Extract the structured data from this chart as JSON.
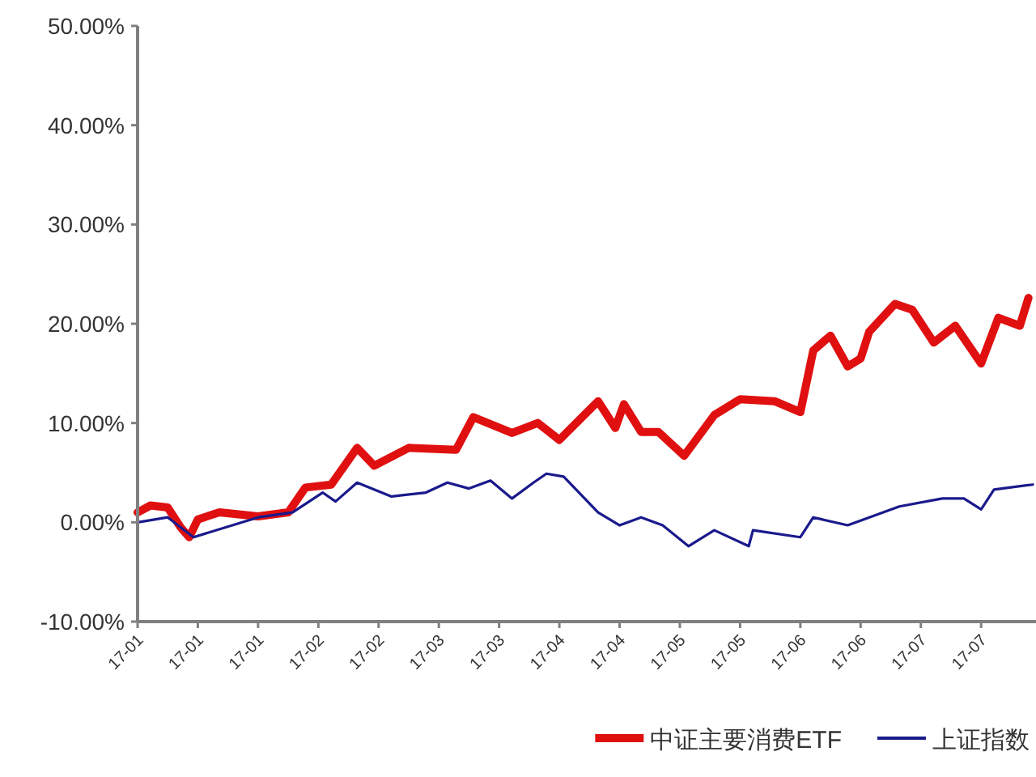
{
  "chart_data": {
    "type": "line",
    "x": [
      "--01-03",
      "--01-06",
      "--01-10",
      "--01-13",
      "--01-15",
      "--01-17",
      "--01-22",
      "--01-31",
      "--02-07",
      "--02-11",
      "--02-17",
      "--02-23",
      "--02-27",
      "--03-07",
      "--03-18",
      "--03-22",
      "--03-31",
      "--04-06",
      "--04-11",
      "--04-20",
      "--04-24",
      "--04-26",
      "--04-30",
      "--05-04",
      "--05-10",
      "--05-17",
      "--05-23",
      "--05-31",
      "--06-06",
      "--06-09",
      "--06-13",
      "--06-17",
      "--06-20",
      "--06-22",
      "--06-28",
      "--07-02",
      "--07-07",
      "--07-12",
      "--07-18",
      "--07-22",
      "--07-27",
      "--07-29"
    ],
    "series": [
      {
        "name": "中证主要消费ETF",
        "color": "#e01010",
        "values": [
          1.0,
          1.7,
          1.5,
          -0.5,
          -1.5,
          0.3,
          1.0,
          0.6,
          1.0,
          3.5,
          3.8,
          7.5,
          5.7,
          7.5,
          7.3,
          10.6,
          9.0,
          10.0,
          8.3,
          12.2,
          9.5,
          11.9,
          9.1,
          9.1,
          6.7,
          10.8,
          12.4,
          12.2,
          11.1,
          17.3,
          18.8,
          15.7,
          16.5,
          19.2,
          22.0,
          21.4,
          18.1,
          19.8,
          16.0,
          20.6,
          19.8,
          22.6
        ]
      },
      {
        "name": "上证指数",
        "color": "#1a1a8c",
        "x": [
          "--01-03",
          "--01-10",
          "--01-16",
          "--01-31",
          "--02-08",
          "--02-15",
          "--02-18",
          "--02-23",
          "--03-03",
          "--03-11",
          "--03-16",
          "--03-21",
          "--03-26",
          "--03-31",
          "--04-05",
          "--04-08",
          "--04-12",
          "--04-20",
          "--04-25",
          "--04-30",
          "--05-05",
          "--05-11",
          "--05-17",
          "--05-25",
          "--05-26",
          "--06-06",
          "--06-09",
          "--06-17",
          "--06-29",
          "--07-09",
          "--07-14",
          "--07-18",
          "--07-21",
          "--07-30"
        ],
        "values": [
          0,
          0.5,
          -1.5,
          0.5,
          1,
          3,
          2.1,
          4,
          2.6,
          3,
          4,
          3.4,
          4.2,
          2.4,
          4,
          4.9,
          4.6,
          1.0,
          -0.3,
          0.5,
          -0.3,
          -2.4,
          -0.8,
          -2.4,
          -0.8,
          -1.5,
          0.5,
          -0.3,
          1.6,
          2.4,
          2.4,
          1.3,
          3.3,
          3.8
        ]
      }
    ],
    "xlim": [
      "--01-03",
      "--07-30"
    ],
    "xticks": [
      {
        "value": "--01-03",
        "label": "17-01"
      },
      {
        "value": "--01-17",
        "label": "17-01"
      },
      {
        "value": "--01-31",
        "label": "17-01"
      },
      {
        "value": "--02-14",
        "label": "17-02"
      },
      {
        "value": "--02-28",
        "label": "17-02"
      },
      {
        "value": "--03-14",
        "label": "17-03"
      },
      {
        "value": "--03-28",
        "label": "17-03"
      },
      {
        "value": "--04-11",
        "label": "17-04"
      },
      {
        "value": "--04-25",
        "label": "17-04"
      },
      {
        "value": "--05-09",
        "label": "17-05"
      },
      {
        "value": "--05-23",
        "label": "17-05"
      },
      {
        "value": "--06-06",
        "label": "17-06"
      },
      {
        "value": "--06-20",
        "label": "17-06"
      },
      {
        "value": "--07-04",
        "label": "17-07"
      },
      {
        "value": "--07-18",
        "label": "17-07"
      }
    ],
    "ylim": [
      -10,
      50
    ],
    "yticks": [
      {
        "value": -10,
        "label": "-10.00%"
      },
      {
        "value": 0,
        "label": "0.00%"
      },
      {
        "value": 10,
        "label": "10.00%"
      },
      {
        "value": 20,
        "label": "20.00%"
      },
      {
        "value": 30,
        "label": "30.00%"
      },
      {
        "value": 40,
        "label": "40.00%"
      },
      {
        "value": 50,
        "label": "50.00%"
      }
    ],
    "grid": false,
    "legend": "bottom right",
    "marker": "none",
    "line_style": "solid"
  }
}
